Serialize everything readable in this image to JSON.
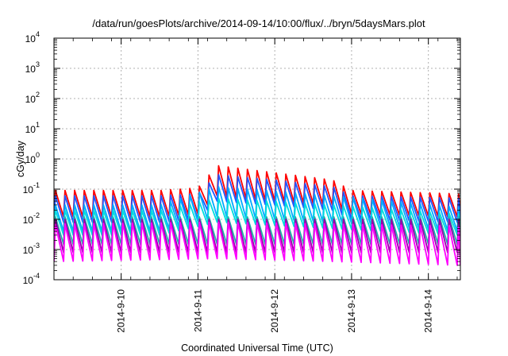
{
  "chart_data": {
    "type": "line",
    "title": "/data/run/goesPlots/archive/2014-09-14/10:00/flux/../bryn/5daysMars.plot",
    "xlabel": "Coordinated Universal Time (UTC)",
    "ylabel": "cGy/day",
    "x_range": [
      "2014-09-09T03:00",
      "2014-09-14T10:00"
    ],
    "y_scale": "log",
    "ylim": [
      0.0001,
      10000
    ],
    "grid": true,
    "legend": "none",
    "y_ticks": [
      {
        "base": "10",
        "exp": "-4"
      },
      {
        "base": "10",
        "exp": "-3"
      },
      {
        "base": "10",
        "exp": "-2"
      },
      {
        "base": "10",
        "exp": "-1"
      },
      {
        "base": "10",
        "exp": "0"
      },
      {
        "base": "10",
        "exp": "1"
      },
      {
        "base": "10",
        "exp": "2"
      },
      {
        "base": "10",
        "exp": "3"
      },
      {
        "base": "10",
        "exp": "4"
      }
    ],
    "x_ticks": [
      "2014-9-10",
      "2014-9-11",
      "2014-9-12",
      "2014-9-13",
      "2014-9-14"
    ],
    "x_tick_values": [
      "2014-09-10T00:00",
      "2014-09-11T00:00",
      "2014-09-12T00:00",
      "2014-09-13T00:00",
      "2014-09-14T00:00"
    ],
    "sawtooth_period_hours": 3,
    "series": [
      {
        "color": "#ff0000",
        "baseline": [
          {
            "t": "2014-09-09T03:00",
            "peak": 0.09,
            "trough": 0.012
          },
          {
            "t": "2014-09-10T12:00",
            "peak": 0.09,
            "trough": 0.012
          },
          {
            "t": "2014-09-11T00:00",
            "peak": 0.11,
            "trough": 0.015
          },
          {
            "t": "2014-09-11T06:00",
            "peak": 0.6,
            "trough": 0.06
          },
          {
            "t": "2014-09-12T00:00",
            "peak": 0.35,
            "trough": 0.04
          },
          {
            "t": "2014-09-12T18:00",
            "peak": 0.2,
            "trough": 0.03
          },
          {
            "t": "2014-09-13T00:00",
            "peak": 0.09,
            "trough": 0.015
          },
          {
            "t": "2014-09-14T10:00",
            "peak": 0.07,
            "trough": 0.012
          }
        ]
      },
      {
        "color": "#2255ff",
        "baseline": [
          {
            "t": "2014-09-09T03:00",
            "peak": 0.06,
            "trough": 0.008
          },
          {
            "t": "2014-09-10T12:00",
            "peak": 0.06,
            "trough": 0.008
          },
          {
            "t": "2014-09-11T00:00",
            "peak": 0.07,
            "trough": 0.01
          },
          {
            "t": "2014-09-11T06:00",
            "peak": 0.3,
            "trough": 0.04
          },
          {
            "t": "2014-09-12T00:00",
            "peak": 0.2,
            "trough": 0.03
          },
          {
            "t": "2014-09-12T18:00",
            "peak": 0.12,
            "trough": 0.02
          },
          {
            "t": "2014-09-13T00:00",
            "peak": 0.06,
            "trough": 0.01
          },
          {
            "t": "2014-09-14T10:00",
            "peak": 0.05,
            "trough": 0.008
          }
        ]
      },
      {
        "color": "#00aaff",
        "baseline": [
          {
            "t": "2014-09-09T03:00",
            "peak": 0.03,
            "trough": 0.004
          },
          {
            "t": "2014-09-10T12:00",
            "peak": 0.03,
            "trough": 0.004
          },
          {
            "t": "2014-09-11T06:00",
            "peak": 0.12,
            "trough": 0.012
          },
          {
            "t": "2014-09-12T18:00",
            "peak": 0.06,
            "trough": 0.008
          },
          {
            "t": "2014-09-14T10:00",
            "peak": 0.025,
            "trough": 0.004
          }
        ]
      },
      {
        "color": "#00dddd",
        "baseline": [
          {
            "t": "2014-09-09T03:00",
            "peak": 0.02,
            "trough": 0.003
          },
          {
            "t": "2014-09-10T12:00",
            "peak": 0.02,
            "trough": 0.003
          },
          {
            "t": "2014-09-11T06:00",
            "peak": 0.05,
            "trough": 0.008
          },
          {
            "t": "2014-09-12T18:00",
            "peak": 0.03,
            "trough": 0.005
          },
          {
            "t": "2014-09-14T10:00",
            "peak": 0.015,
            "trough": 0.003
          }
        ]
      },
      {
        "color": "#20b2aa",
        "baseline": [
          {
            "t": "2014-09-09T03:00",
            "peak": 0.012,
            "trough": 0.0015
          },
          {
            "t": "2014-09-14T10:00",
            "peak": 0.012,
            "trough": 0.0015
          }
        ]
      },
      {
        "color": "#9900aa",
        "baseline": [
          {
            "t": "2014-09-09T03:00",
            "peak": 0.01,
            "trough": 0.0008
          },
          {
            "t": "2014-09-14T10:00",
            "peak": 0.01,
            "trough": 0.0008
          }
        ]
      },
      {
        "color": "#ff00ff",
        "baseline": [
          {
            "t": "2014-09-09T03:00",
            "peak": 0.007,
            "trough": 0.0004
          },
          {
            "t": "2014-09-11T06:00",
            "peak": 0.008,
            "trough": 0.0005
          },
          {
            "t": "2014-09-12T18:00",
            "peak": 0.007,
            "trough": 0.0004
          },
          {
            "t": "2014-09-14T10:00",
            "peak": 0.006,
            "trough": 0.0003
          }
        ]
      }
    ]
  }
}
